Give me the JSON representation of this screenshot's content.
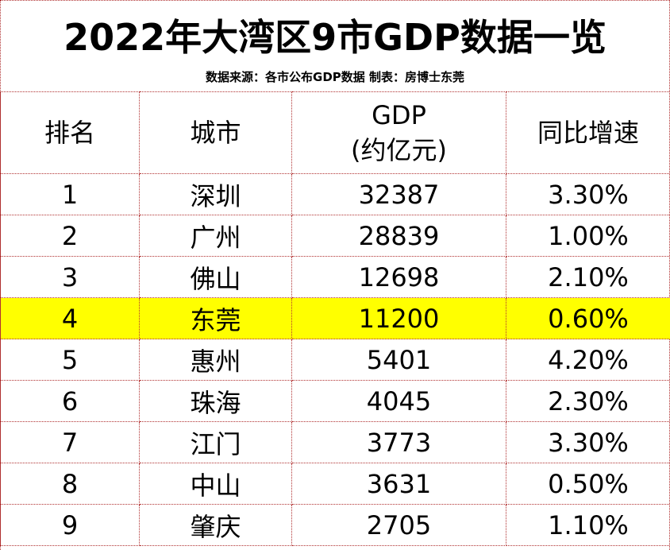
{
  "title": "2022年大湾区9市GDP数据一览",
  "subtitle": "数据来源：各市公布GDP数据 制表：房博士东莞",
  "highlight_color": "#ffff00",
  "grid_color": "#b03030",
  "headers": {
    "rank": "排名",
    "city": "城市",
    "gdp_line1": "GDP",
    "gdp_line2": "(约亿元)",
    "growth": "同比增速"
  },
  "rows": [
    {
      "rank": "1",
      "city": "深圳",
      "gdp": "32387",
      "growth": "3.30%"
    },
    {
      "rank": "2",
      "city": "广州",
      "gdp": "28839",
      "growth": "1.00%"
    },
    {
      "rank": "3",
      "city": "佛山",
      "gdp": "12698",
      "growth": "2.10%"
    },
    {
      "rank": "4",
      "city": "东莞",
      "gdp": "11200",
      "growth": "0.60%"
    },
    {
      "rank": "5",
      "city": "惠州",
      "gdp": "5401",
      "growth": "4.20%"
    },
    {
      "rank": "6",
      "city": "珠海",
      "gdp": "4045",
      "growth": "2.30%"
    },
    {
      "rank": "7",
      "city": "江门",
      "gdp": "3773",
      "growth": "3.30%"
    },
    {
      "rank": "8",
      "city": "中山",
      "gdp": "3631",
      "growth": "0.50%"
    },
    {
      "rank": "9",
      "city": "肇庆",
      "gdp": "2705",
      "growth": "1.10%"
    }
  ]
}
